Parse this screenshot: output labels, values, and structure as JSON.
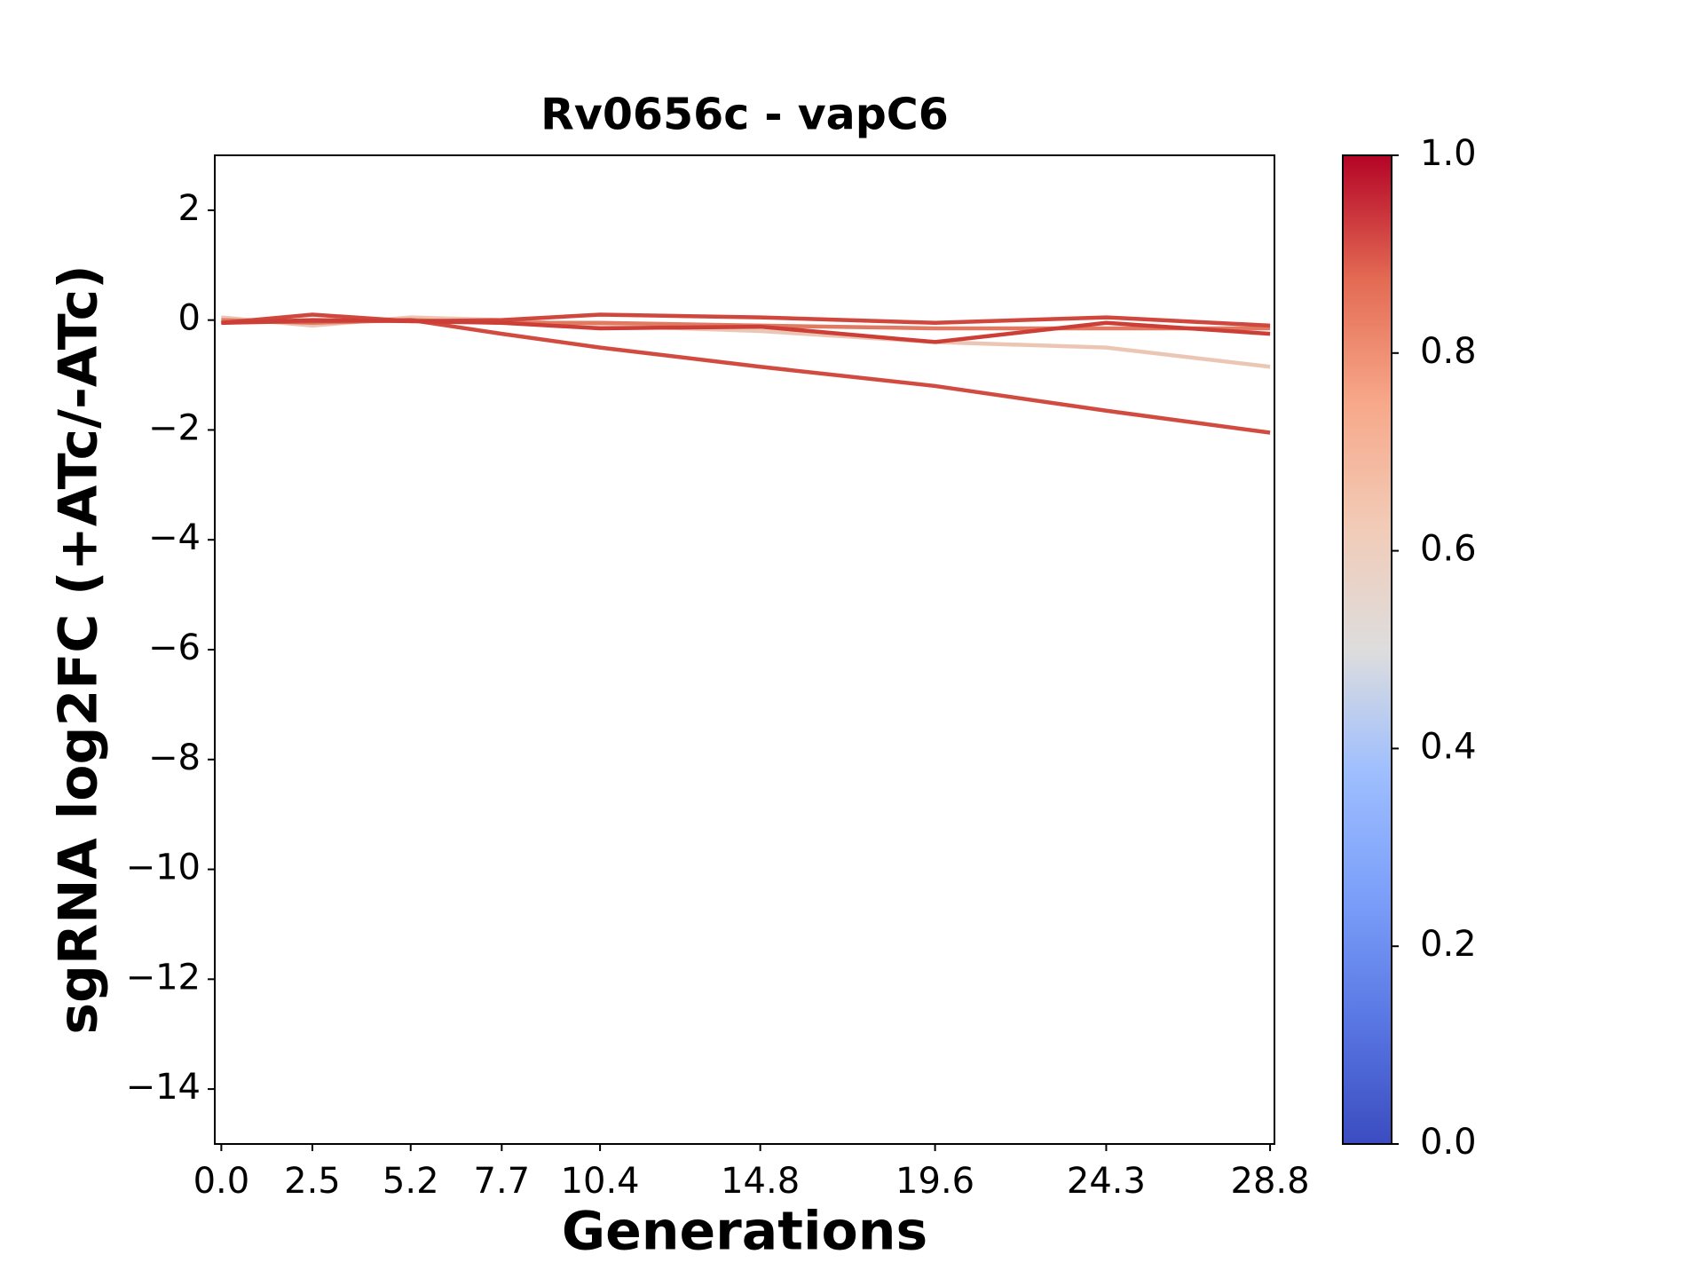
{
  "chart_data": {
    "type": "line",
    "title": "Rv0656c - vapC6",
    "x_label": "Generations",
    "y_label": "sgRNA log2FC (+ATc/-ATc)",
    "x": [
      0.0,
      2.5,
      5.2,
      7.7,
      10.4,
      14.8,
      19.6,
      24.3,
      28.8
    ],
    "series": [
      {
        "color": "#ecc6b4",
        "values": [
          0.05,
          -0.1,
          0.05,
          0,
          -0.1,
          -0.2,
          -0.4,
          -0.5,
          -0.85
        ]
      },
      {
        "color": "#e07a62",
        "values": [
          0,
          -0.05,
          0,
          -0.05,
          -0.05,
          -0.1,
          -0.15,
          -0.15,
          -0.15
        ]
      },
      {
        "color": "#d24b40",
        "values": [
          -0.05,
          -0.02,
          0,
          -0.25,
          -0.5,
          -0.85,
          -1.2,
          -1.65,
          -2.05
        ]
      },
      {
        "color": "#d0473d",
        "values": [
          -0.05,
          0.1,
          -0.02,
          0,
          0.1,
          0.05,
          -0.05,
          0.05,
          -0.1
        ]
      },
      {
        "color": "#cc3e36",
        "values": [
          -0.05,
          0,
          -0.02,
          -0.05,
          -0.15,
          -0.12,
          -0.4,
          -0.05,
          -0.25
        ]
      }
    ],
    "xlim": [
      -0.18,
      28.92
    ],
    "xticks": [
      {
        "value": 0,
        "label": "0.0"
      },
      2.5,
      5.2,
      7.7,
      10.4,
      14.8,
      19.6,
      24.3,
      28.8
    ],
    "ylim": [
      -15,
      3
    ],
    "yticks": [
      {
        "value": -14,
        "label": "−14"
      },
      {
        "value": -12,
        "label": "−12"
      },
      {
        "value": -10,
        "label": "−10"
      },
      {
        "value": -8,
        "label": "−8"
      },
      {
        "value": -6,
        "label": "−6"
      },
      {
        "value": -4,
        "label": "−4"
      },
      {
        "value": -2,
        "label": "−2"
      },
      0,
      2
    ],
    "colorbar": {
      "lim": [
        0,
        1
      ],
      "ticks": [
        {
          "value": 0,
          "label": "0.0"
        },
        {
          "value": 0.2,
          "label": "0.2"
        },
        {
          "value": 0.4,
          "label": "0.4"
        },
        {
          "value": 0.6,
          "label": "0.6"
        },
        {
          "value": 0.8,
          "label": "0.8"
        },
        {
          "value": 1,
          "label": "1.0"
        }
      ]
    }
  }
}
